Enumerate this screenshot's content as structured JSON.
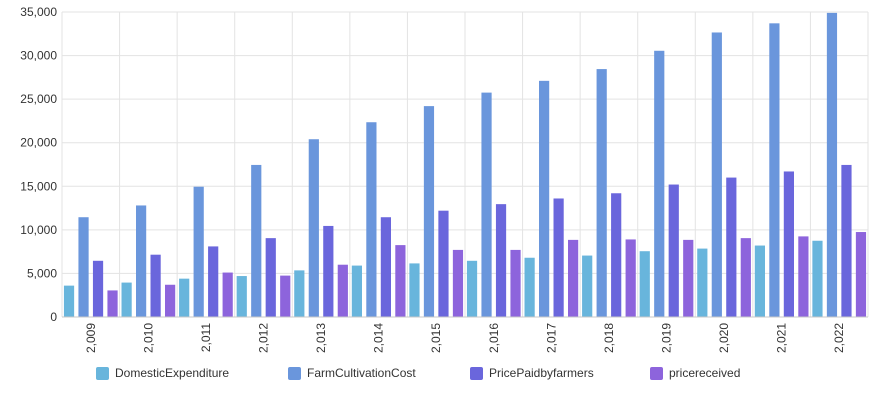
{
  "chart_data": {
    "type": "bar",
    "categories": [
      "2,009",
      "2,010",
      "2,011",
      "2,012",
      "2,013",
      "2,014",
      "2,015",
      "2,016",
      "2,017",
      "2,018",
      "2,019",
      "2,020",
      "2,021",
      "2,022"
    ],
    "series": [
      {
        "name": "DomesticExpenditure",
        "color": "#68b5dc",
        "values": [
          3600,
          3950,
          4400,
          4700,
          5350,
          5900,
          6150,
          6450,
          6800,
          7050,
          7550,
          7850,
          8200,
          8750
        ]
      },
      {
        "name": "FarmCultivationCost",
        "color": "#6a96dc",
        "values": [
          11450,
          12800,
          14950,
          17450,
          20400,
          22350,
          24200,
          25750,
          27100,
          28450,
          30550,
          32650,
          33700,
          34900
        ]
      },
      {
        "name": "PricePaidbyfarmers",
        "color": "#6a66dc",
        "values": [
          6450,
          7150,
          8100,
          9050,
          10450,
          11450,
          12200,
          12950,
          13600,
          14200,
          15200,
          16000,
          16700,
          17450
        ]
      },
      {
        "name": "pricereceived",
        "color": "#8d64dc",
        "values": [
          3050,
          3700,
          5100,
          4750,
          6000,
          8250,
          7700,
          7700,
          8850,
          8900,
          8850,
          9050,
          9250,
          9750
        ]
      }
    ],
    "ylim": [
      0,
      35000
    ],
    "yticks": [
      "0",
      "5,000",
      "10,000",
      "15,000",
      "20,000",
      "25,000",
      "30,000",
      "35,000"
    ],
    "grid": true,
    "legend_position": "bottom"
  }
}
